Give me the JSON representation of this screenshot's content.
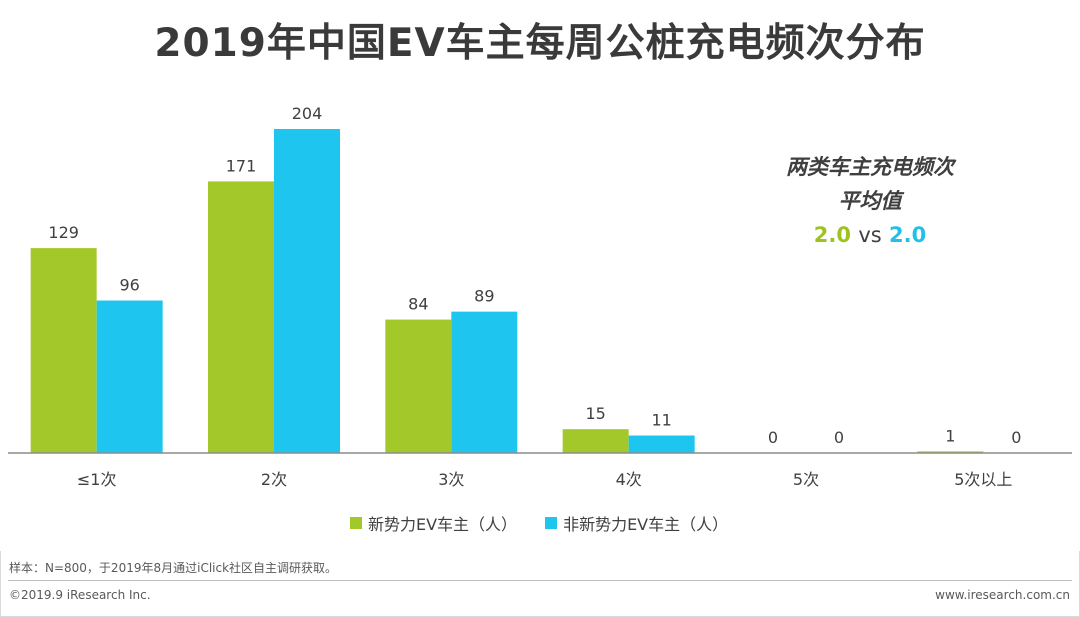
{
  "header": {
    "title": "2019年中国EV车主每周公桩充电频次分布"
  },
  "annotation": {
    "line1": "两类车主充电频次",
    "line2": "平均值",
    "value_a": "2.0",
    "vs": "vs",
    "value_b": "2.0"
  },
  "chart_data": {
    "type": "bar",
    "categories": [
      "≤1次",
      "2次",
      "3次",
      "4次",
      "5次",
      "5次以上"
    ],
    "series": [
      {
        "name": "新势力EV车主（人）",
        "values": [
          129,
          171,
          84,
          15,
          0,
          1
        ],
        "color": "#a3c82a"
      },
      {
        "name": "非新势力EV车主（人）",
        "values": [
          96,
          204,
          89,
          11,
          0,
          0
        ],
        "color": "#1ec6ef"
      }
    ],
    "ylim": [
      0,
      204
    ],
    "grid": false,
    "legend": "bottom-center",
    "data_labels": true
  },
  "footer": {
    "sample_note": "样本：N=800，于2019年8月通过iClick社区自主调研获取。",
    "copyright": "©2019.9  iResearch Inc.",
    "site": "www.iresearch.com.cn"
  }
}
